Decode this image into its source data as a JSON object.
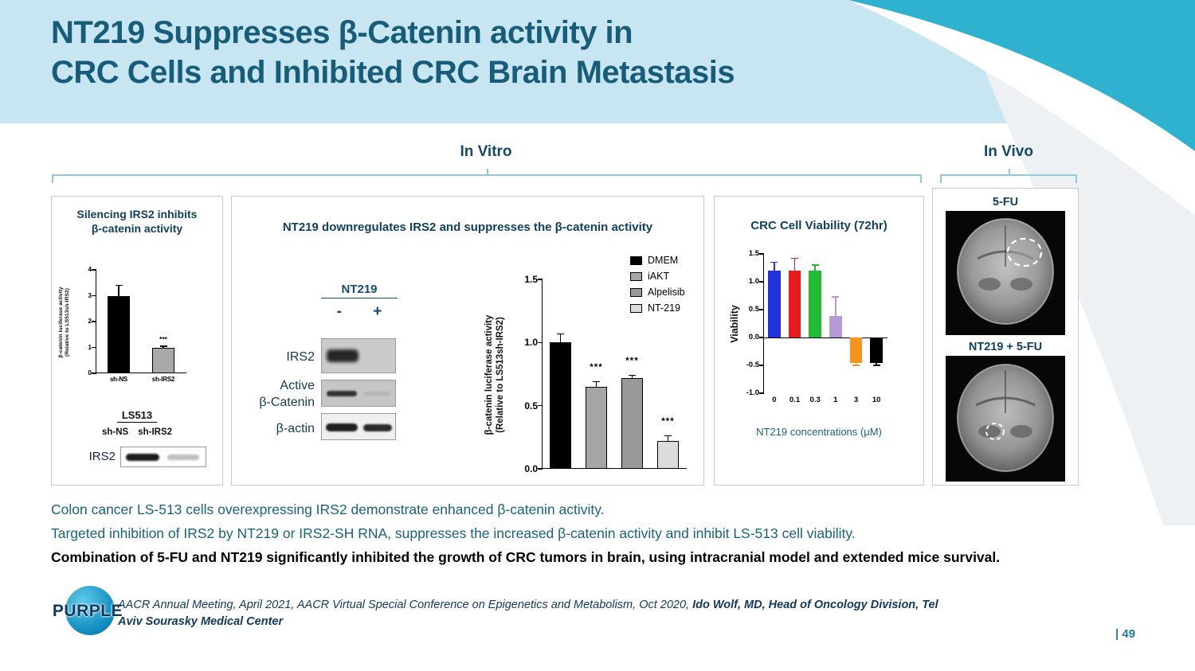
{
  "header": {
    "title_line1": "NT219 Suppresses β-Catenin activity in",
    "title_line2": "CRC Cells and Inhibited CRC Brain Metastasis"
  },
  "groups": {
    "in_vitro": "In Vitro",
    "in_vivo": "In Vivo"
  },
  "panel_silencing": {
    "title_line1": "Silencing IRS2 inhibits",
    "title_line2": "β-catenin activity",
    "blot_cell_line": "LS513",
    "blot_lane1": "sh-NS",
    "blot_lane2": "sh-IRS2",
    "blot_row": "IRS2"
  },
  "panel_nt219": {
    "blot": {
      "treatment": "NT219",
      "lane_minus": "-",
      "lane_plus": "+",
      "rows": [
        "IRS2",
        "Active\nβ-Catenin",
        "β-actin"
      ]
    }
  },
  "panel_invivo": {
    "label_top": "5-FU",
    "label_bottom": "NT219 + 5-FU"
  },
  "notes": {
    "line1": "Colon cancer LS-513 cells overexpressing IRS2 demonstrate enhanced β-catenin activity.",
    "line2": "Targeted inhibition of IRS2 by NT219 or IRS2-SH RNA, suppresses the increased β-catenin activity and inhibit LS-513 cell viability.",
    "line3": "Combination of 5-FU and NT219 significantly inhibited the growth of CRC tumors in brain, using intracranial model and extended mice survival."
  },
  "footer": {
    "logo_text": "PURPLE",
    "citation_regular": "AACR Annual Meeting, April 2021, AACR Virtual Special Conference on Epigenetics and Metabolism, Oct 2020, ",
    "citation_bold": "Ido Wolf, MD, Head of Oncology Division, Tel Aviv Sourasky Medical Center",
    "page_number": "| 49"
  },
  "chart_data": [
    {
      "type": "bar",
      "title": "Silencing IRS2 inhibits β-catenin activity",
      "categories": [
        "sh-NS",
        "sh-IRS2"
      ],
      "values": [
        3.0,
        1.0
      ],
      "errors": [
        0.4,
        0.05
      ],
      "annotations": [
        "",
        "***"
      ],
      "bar_colors": [
        "#000000",
        "#a9a9a9"
      ],
      "bar_border": true,
      "bar_frac": 0.5,
      "ann_dy": 14,
      "ylabel_line1": "β-catenin luciferase activity",
      "ylabel_line2": "(Relative to LS513sh-IRS2)",
      "ylim": [
        0,
        4
      ],
      "yticks": [
        0,
        1,
        2,
        3,
        4
      ],
      "ytick_labels": [
        "0",
        "1",
        "2",
        "3",
        "4"
      ],
      "show_categories": true
    },
    {
      "type": "bar",
      "title": "NT219 downregulates IRS2 and suppresses the β-catenin activity",
      "categories": [
        "DMEM",
        "iAKT",
        "Alpelisib",
        "NT-219"
      ],
      "values": [
        1.0,
        0.65,
        0.72,
        0.22
      ],
      "errors": [
        0.07,
        0.04,
        0.02,
        0.04
      ],
      "annotations": [
        "",
        "***",
        "***",
        "***"
      ],
      "bar_colors": [
        "#000000",
        "#a6a6a6",
        "#999999",
        "#dcdcdc"
      ],
      "bar_border": true,
      "bar_frac": 0.62,
      "ann_dy": 24,
      "ylabel_line1": "β-catenin luciferase activity",
      "ylabel_line2": "(Relative to LS513sh-IRS2)",
      "ylim": [
        0,
        1.5
      ],
      "yticks": [
        0,
        0.5,
        1,
        1.5
      ],
      "ytick_labels": [
        "0.0",
        "0.5",
        "1.0",
        "1.5"
      ],
      "show_categories": false,
      "legend_position": "top-right",
      "legend": [
        {
          "label": "DMEM",
          "color": "#000000"
        },
        {
          "label": "iAKT",
          "color": "#a6a6a6"
        },
        {
          "label": "Alpelisib",
          "color": "#999999"
        },
        {
          "label": "NT-219",
          "color": "#dcdcdc"
        }
      ]
    },
    {
      "type": "bar",
      "title": "CRC Cell Viability (72hr)",
      "categories": [
        "0",
        "0.1",
        "0.3",
        "1",
        "3",
        "10"
      ],
      "values": [
        1.2,
        1.2,
        1.2,
        0.38,
        -0.45,
        -0.45
      ],
      "errors": [
        0.15,
        0.22,
        0.1,
        0.35,
        0.05,
        0.05
      ],
      "annotations": [
        "",
        "",
        "",
        "",
        "",
        ""
      ],
      "bar_colors": [
        "#2233dd",
        "#e81c1c",
        "#22bb33",
        "#b69ad6",
        "#f7941d",
        "#000000"
      ],
      "bar_border": false,
      "bar_frac": 0.62,
      "err_match": true,
      "xlabel": "NT219 concentrations (μM)",
      "ylabel": "Viability",
      "ylim": [
        -1.0,
        1.5
      ],
      "yticks": [
        -1,
        -0.5,
        0,
        0.5,
        1,
        1.5
      ],
      "ytick_labels": [
        "-1.0",
        "-0.5",
        "0.0",
        "0.5",
        "1.0",
        "1.5"
      ],
      "show_categories": true
    }
  ]
}
